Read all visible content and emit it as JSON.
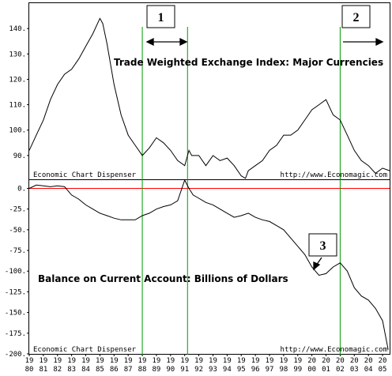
{
  "chart_data": [
    {
      "type": "line",
      "title": "Trade Weighted Exchange Index: Major Currencies",
      "credit_left": "Economic Chart Dispenser",
      "credit_right": "http://www.Economagic.com",
      "ylim": [
        80,
        150
      ],
      "yticks": [
        "90.",
        "100.",
        "110.",
        "120.",
        "130.",
        "140."
      ],
      "series": [
        {
          "x": [
            1980.0,
            1980.5,
            1981.0,
            1981.5,
            1982.0,
            1982.5,
            1983.0,
            1983.5,
            1984.0,
            1984.5,
            1985.0,
            1985.2,
            1985.5,
            1986.0,
            1986.5,
            1987.0,
            1987.5,
            1988.0,
            1988.5,
            1989.0,
            1989.5,
            1990.0,
            1990.5,
            1991.0,
            1991.3,
            1991.5,
            1992.0,
            1992.5,
            1993.0,
            1993.5,
            1994.0,
            1994.5,
            1995.0,
            1995.3,
            1995.5,
            1996.0,
            1996.5,
            1997.0,
            1997.5,
            1998.0,
            1998.5,
            1999.0,
            1999.5,
            2000.0,
            2000.5,
            2001.0,
            2001.5,
            2002.0,
            2002.5,
            2003.0,
            2003.5,
            2004.0,
            2004.5,
            2005.0,
            2005.5
          ],
          "values": [
            92,
            98,
            104,
            112,
            118,
            122,
            124,
            128,
            133,
            138,
            144,
            142,
            134,
            118,
            106,
            98,
            94,
            90,
            93,
            97,
            95,
            92,
            88,
            86,
            92,
            90,
            90,
            86,
            90,
            88,
            89,
            86,
            82,
            81,
            84,
            86,
            88,
            92,
            94,
            98,
            98,
            100,
            104,
            108,
            110,
            112,
            106,
            104,
            98,
            92,
            88,
            86,
            83,
            85,
            84
          ]
        }
      ]
    },
    {
      "type": "line",
      "title": "Balance on Current Account: Billions of Dollars",
      "credit_left": "Economic Chart Dispenser",
      "credit_right": "http://www.Economagic.com",
      "ylim": [
        -200,
        10
      ],
      "yticks": [
        "0.",
        "-25.",
        "-50.",
        "-75.",
        "-100.",
        "-125.",
        "-150.",
        "-175.",
        "-200."
      ],
      "series": [
        {
          "x": [
            1980.0,
            1980.5,
            1981.0,
            1981.5,
            1982.0,
            1982.5,
            1983.0,
            1983.5,
            1984.0,
            1984.5,
            1985.0,
            1985.5,
            1986.0,
            1986.5,
            1987.0,
            1987.5,
            1988.0,
            1988.5,
            1989.0,
            1989.5,
            1990.0,
            1990.5,
            1991.0,
            1991.3,
            1991.6,
            1992.0,
            1992.5,
            1993.0,
            1993.5,
            1994.0,
            1994.5,
            1995.0,
            1995.5,
            1996.0,
            1996.5,
            1997.0,
            1997.5,
            1998.0,
            1998.5,
            1999.0,
            1999.5,
            2000.0,
            2000.5,
            2001.0,
            2001.5,
            2002.0,
            2002.5,
            2003.0,
            2003.5,
            2004.0,
            2004.5,
            2005.0,
            2005.4
          ],
          "values": [
            0,
            4,
            3,
            2,
            3,
            2,
            -8,
            -13,
            -20,
            -25,
            -30,
            -33,
            -36,
            -38,
            -38,
            -38,
            -33,
            -30,
            -25,
            -22,
            -20,
            -15,
            10,
            0,
            -8,
            -12,
            -17,
            -20,
            -25,
            -30,
            -35,
            -33,
            -30,
            -35,
            -38,
            -40,
            -45,
            -50,
            -60,
            -70,
            -80,
            -95,
            -105,
            -103,
            -95,
            -90,
            -100,
            -120,
            -130,
            -135,
            -145,
            -160,
            -195
          ]
        }
      ]
    }
  ],
  "x_axis": {
    "years_top": [
      "19",
      "19",
      "19",
      "19",
      "19",
      "19",
      "19",
      "19",
      "19",
      "19",
      "19",
      "19",
      "19",
      "19",
      "19",
      "19",
      "19",
      "19",
      "19",
      "19",
      "20",
      "20",
      "20",
      "20",
      "20",
      "20"
    ],
    "years_bottom": [
      "80",
      "81",
      "82",
      "83",
      "84",
      "85",
      "86",
      "87",
      "88",
      "89",
      "90",
      "91",
      "92",
      "93",
      "94",
      "95",
      "96",
      "97",
      "98",
      "99",
      "00",
      "01",
      "02",
      "03",
      "04",
      "05"
    ]
  },
  "annotations": {
    "labels": [
      "1",
      "2",
      "3"
    ],
    "vertical_lines_x": [
      1988,
      1991.2,
      2002
    ],
    "zero_line_color": "#ff0000",
    "marker_line_color": "#009900"
  }
}
